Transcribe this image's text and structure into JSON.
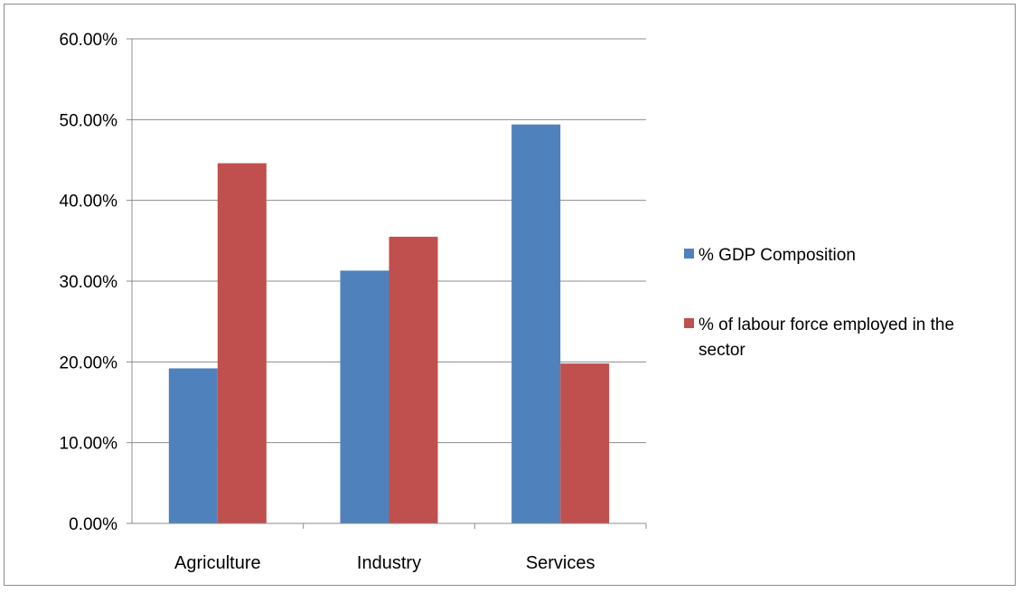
{
  "chart_data": {
    "type": "bar",
    "title": "",
    "xlabel": "",
    "ylabel": "",
    "categories": [
      "Agriculture",
      "Industry",
      "Services"
    ],
    "series": [
      {
        "name": "% GDP Composition",
        "color": "#4f81bd",
        "values": [
          0.192,
          0.313,
          0.494
        ]
      },
      {
        "name": "% of labour force employed in the sector",
        "color": "#c0504d",
        "values": [
          0.446,
          0.355,
          0.198
        ]
      }
    ],
    "ylim": [
      0,
      0.6
    ],
    "yticks": [
      0,
      0.1,
      0.2,
      0.3,
      0.4,
      0.5,
      0.6
    ],
    "ytick_labels": [
      "0.00%",
      "10.00%",
      "20.00%",
      "30.00%",
      "40.00%",
      "50.00%",
      "60.00%"
    ],
    "grid": true,
    "legend_position": "right"
  }
}
